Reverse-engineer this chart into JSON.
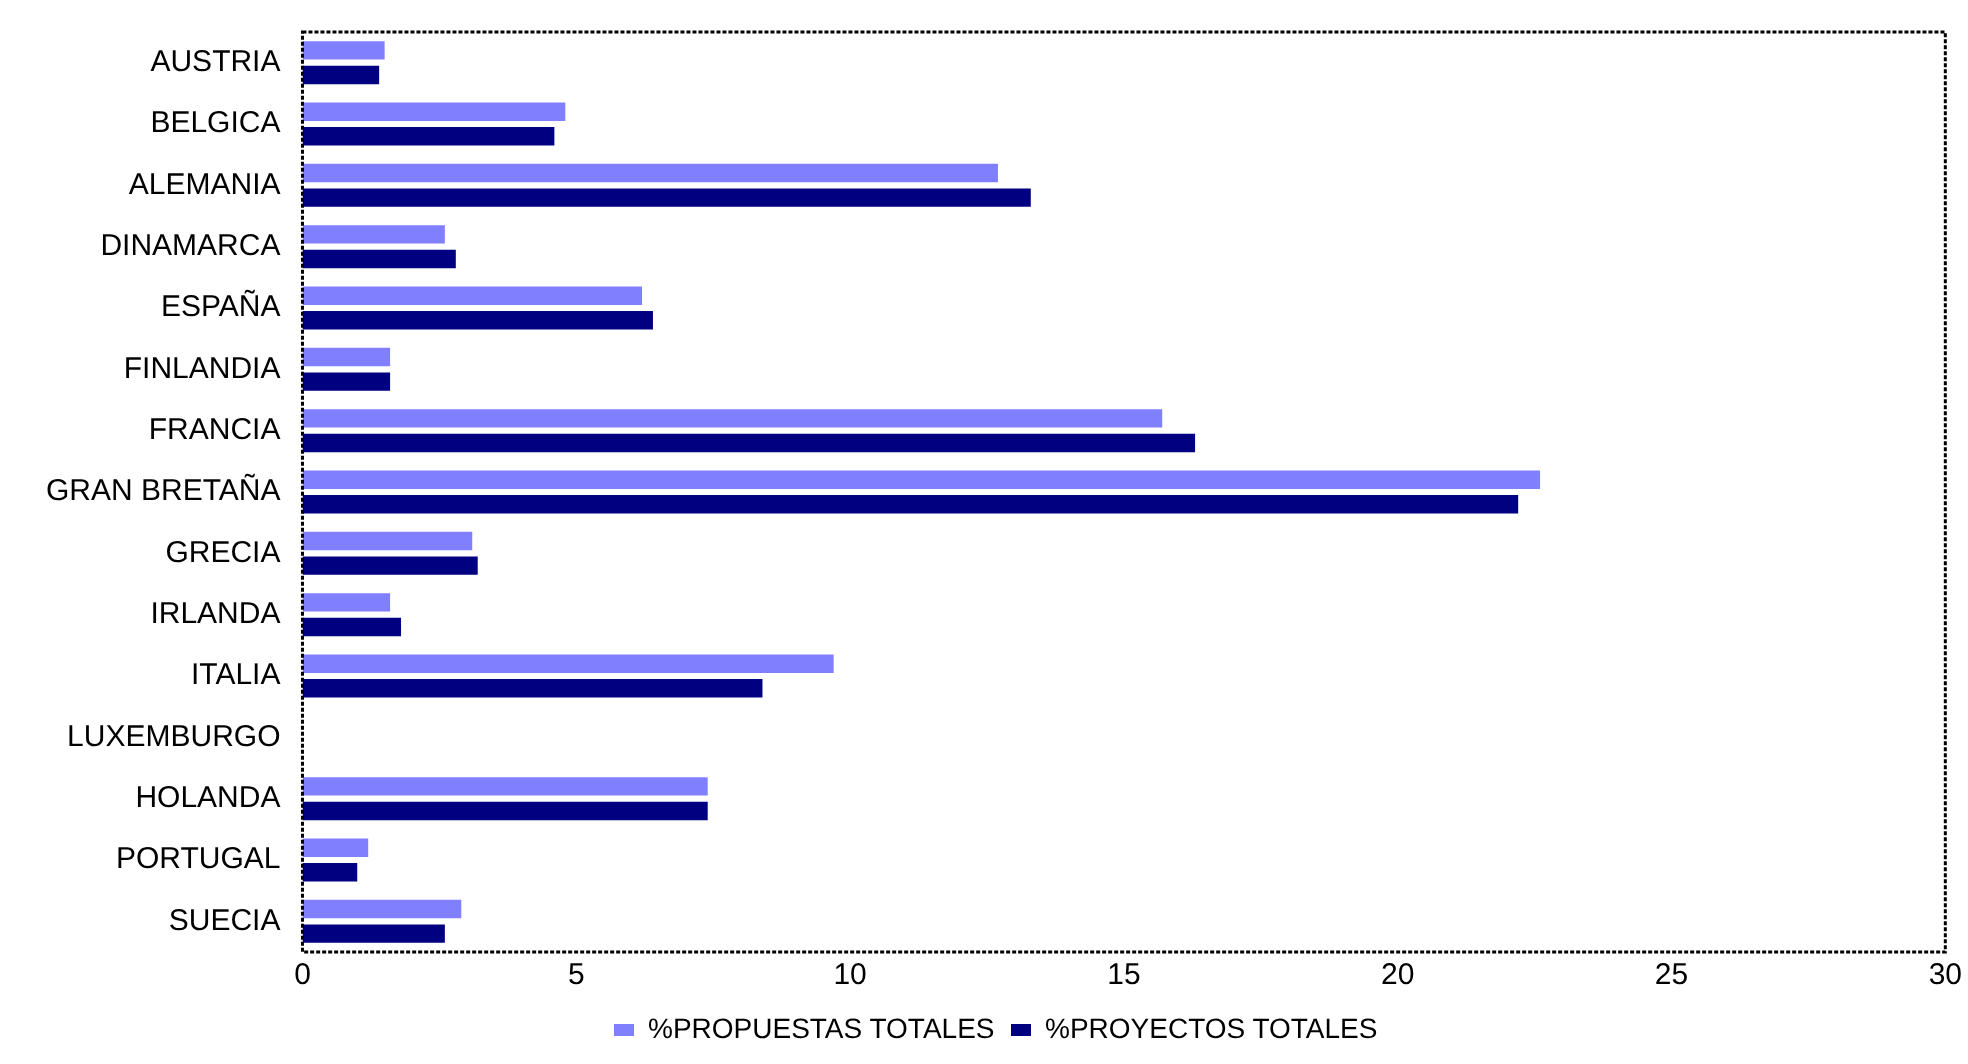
{
  "chart_data": {
    "type": "bar",
    "orientation": "horizontal",
    "categories": [
      "AUSTRIA",
      "BELGICA",
      "ALEMANIA",
      "DINAMARCA",
      "ESPAÑA",
      "FINLANDIA",
      "FRANCIA",
      "GRAN BRETAÑA",
      "GRECIA",
      "IRLANDA",
      "ITALIA",
      "LUXEMBURGO",
      "HOLANDA",
      "PORTUGAL",
      "SUECIA"
    ],
    "series": [
      {
        "name": "%PROPUESTAS TOTALES",
        "color": "#8080ff",
        "values": [
          1.5,
          4.8,
          12.7,
          2.6,
          6.2,
          1.6,
          15.7,
          22.6,
          3.1,
          1.6,
          9.7,
          0,
          7.4,
          1.2,
          2.9
        ]
      },
      {
        "name": "%PROYECTOS TOTALES",
        "color": "#000080",
        "values": [
          1.4,
          4.6,
          13.3,
          2.8,
          6.4,
          1.6,
          16.3,
          22.2,
          3.2,
          1.8,
          8.4,
          0,
          7.4,
          1.0,
          2.6
        ]
      }
    ],
    "xlim": [
      0,
      30
    ],
    "xticks": [
      0,
      5,
      10,
      15,
      20,
      25,
      30
    ],
    "grid": false,
    "legend": "bottom"
  }
}
